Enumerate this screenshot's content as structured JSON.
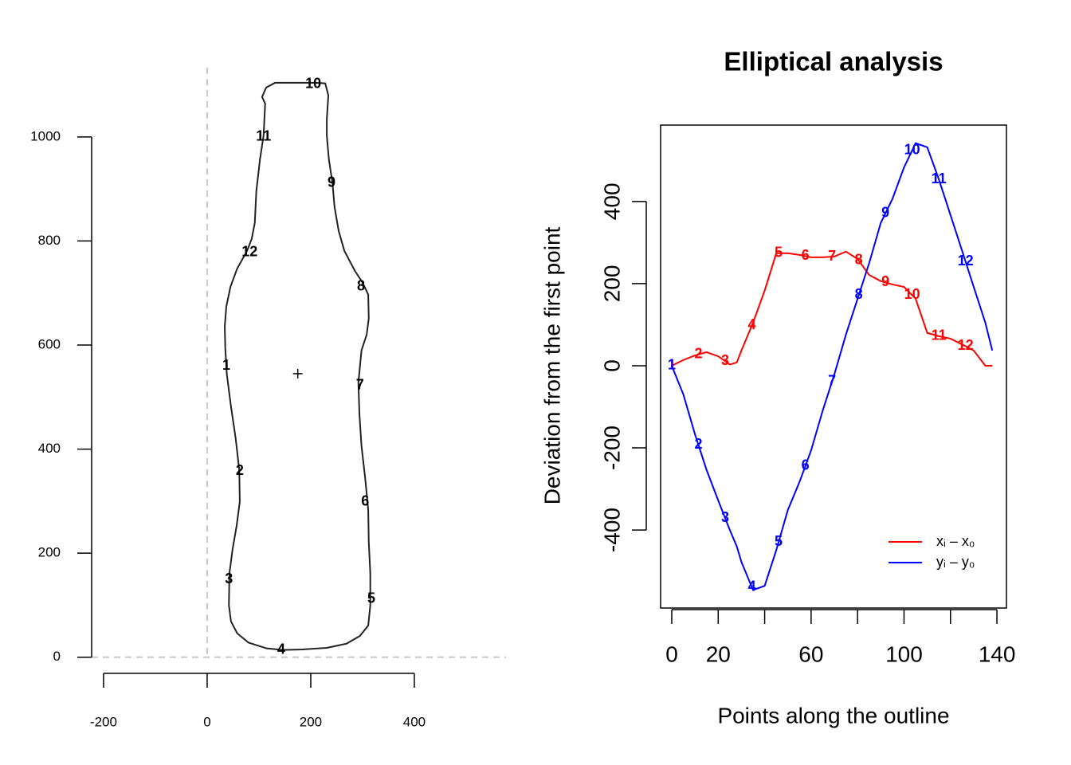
{
  "chart_data": [
    {
      "type": "outline",
      "x": [
        35,
        38,
        46,
        55,
        62,
        63,
        57,
        49,
        43,
        42,
        46,
        58,
        80,
        115,
        146,
        185,
        231,
        269,
        295,
        311,
        315,
        315,
        312,
        311,
        305,
        298,
        294,
        292,
        298,
        308,
        312,
        311,
        300,
        285,
        265,
        254,
        246,
        242,
        235,
        231,
        231,
        234,
        228,
        208,
        131,
        114,
        106,
        112,
        109,
        102,
        95,
        92,
        86,
        77,
        58,
        45,
        37,
        34,
        35
      ],
      "y": [
        594,
        544,
        482,
        421,
        360,
        299,
        253,
        207,
        161,
        100,
        69,
        46,
        28,
        17,
        14,
        15,
        18,
        26,
        41,
        61,
        100,
        161,
        222,
        283,
        345,
        406,
        467,
        528,
        590,
        620,
        651,
        697,
        720,
        743,
        781,
        819,
        865,
        911,
        957,
        1003,
        1034,
        1080,
        1103,
        1104,
        1104,
        1095,
        1077,
        1064,
        1003,
        957,
        896,
        835,
        804,
        781,
        747,
        712,
        674,
        636,
        594
      ],
      "color": "#222222",
      "point_labels": [
        {
          "text": "1",
          "x": 37,
          "y": 560
        },
        {
          "text": "2",
          "x": 63,
          "y": 358
        },
        {
          "text": "3",
          "x": 42,
          "y": 149
        },
        {
          "text": "4",
          "x": 143,
          "y": 14
        },
        {
          "text": "5",
          "x": 317,
          "y": 112
        },
        {
          "text": "6",
          "x": 305,
          "y": 299
        },
        {
          "text": "7",
          "x": 295,
          "y": 522
        },
        {
          "text": "8",
          "x": 297,
          "y": 712
        },
        {
          "text": "9",
          "x": 240,
          "y": 911
        },
        {
          "text": "10",
          "x": 205,
          "y": 1101
        },
        {
          "text": "11",
          "x": 109,
          "y": 1000
        },
        {
          "text": "12",
          "x": 82,
          "y": 778
        }
      ],
      "centroid": [
        175,
        545
      ],
      "hline": 0,
      "vline": 0,
      "xlim": [
        -223,
        577
      ],
      "ylim": [
        -31,
        1133
      ],
      "xticks": [
        -200,
        0,
        200,
        400
      ],
      "yticks": [
        0,
        200,
        400,
        600,
        800,
        1000
      ]
    },
    {
      "type": "line",
      "title": "Elliptical analysis",
      "x_label": "Points along the outline",
      "y_label": "Deviation from the first point",
      "x": [
        0,
        5,
        10,
        15,
        20,
        25,
        28,
        30,
        35,
        40,
        45,
        50,
        55,
        60,
        65,
        70,
        75,
        80,
        85,
        90,
        95,
        100,
        105,
        110,
        115,
        120,
        125,
        130,
        135,
        138
      ],
      "series": [
        {
          "name": "xᵢ – x₀",
          "color": "#ff0000",
          "values": [
            0,
            14,
            25,
            33,
            23,
            3,
            8,
            37,
            105,
            183,
            274,
            274,
            270,
            264,
            264,
            266,
            278,
            260,
            221,
            206,
            198,
            192,
            163,
            80,
            72,
            66,
            52,
            37,
            0,
            0
          ]
        },
        {
          "name": "yᵢ – y₀",
          "color": "#0000ff",
          "values": [
            0,
            -70,
            -167,
            -254,
            -328,
            -400,
            -440,
            -478,
            -546,
            -536,
            -449,
            -351,
            -283,
            -206,
            -109,
            -21,
            76,
            163,
            250,
            348,
            406,
            483,
            542,
            532,
            454,
            367,
            280,
            192,
            105,
            37
          ]
        }
      ],
      "point_labels": [
        "1",
        "2",
        "3",
        "4",
        "5",
        "6",
        "7",
        "8",
        "9",
        "10",
        "11",
        "12"
      ],
      "point_label_x": [
        0,
        11.5,
        23,
        34.5,
        46,
        57.5,
        69,
        80.5,
        92,
        103.5,
        115,
        126.5
      ],
      "legend": "bottom-right",
      "xlim": [
        -4.8,
        144.1
      ],
      "ylim": [
        -590,
        586
      ],
      "xticks": [
        0,
        20,
        {
          "value": 40,
          "label": null
        },
        60,
        {
          "value": 80,
          "label": null
        },
        100,
        {
          "value": 120,
          "label": null
        },
        140
      ],
      "yticks": [
        -400,
        -200,
        0,
        200,
        400
      ]
    }
  ]
}
